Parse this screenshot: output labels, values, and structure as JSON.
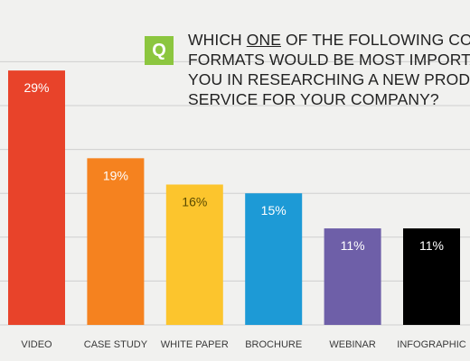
{
  "question": {
    "badge": "Q",
    "line1_before": "WHICH ",
    "line1_emph": "ONE",
    "line1_after": " OF THE FOLLOWING CONTE",
    "line2": "FORMATS WOULD BE MOST IMPORTANT",
    "line3": "YOU IN RESEARCHING A NEW PRODUCT C",
    "line4": "SERVICE FOR YOUR COMPANY?"
  },
  "chart_data": {
    "type": "bar",
    "categories": [
      "VIDEO",
      "CASE STUDY",
      "WHITE PAPER",
      "BROCHURE",
      "WEBINAR",
      "INFOGRAPHIC"
    ],
    "values": [
      29,
      19,
      16,
      15,
      11,
      11
    ],
    "data_labels": [
      "29%",
      "19%",
      "16%",
      "15%",
      "11%",
      "11%"
    ],
    "colors": [
      "#e8432a",
      "#f5821f",
      "#fcc52d",
      "#1d9ad6",
      "#6e5fa8",
      "#000000"
    ],
    "label_colors": [
      "#ffffff",
      "#ffffff",
      "#5a4a00",
      "#ffffff",
      "#ffffff",
      "#ffffff"
    ],
    "ylim": [
      0,
      30
    ],
    "grid": true,
    "gridline_color": "#cfcfcf",
    "title": "",
    "xlabel": "",
    "ylabel": ""
  }
}
